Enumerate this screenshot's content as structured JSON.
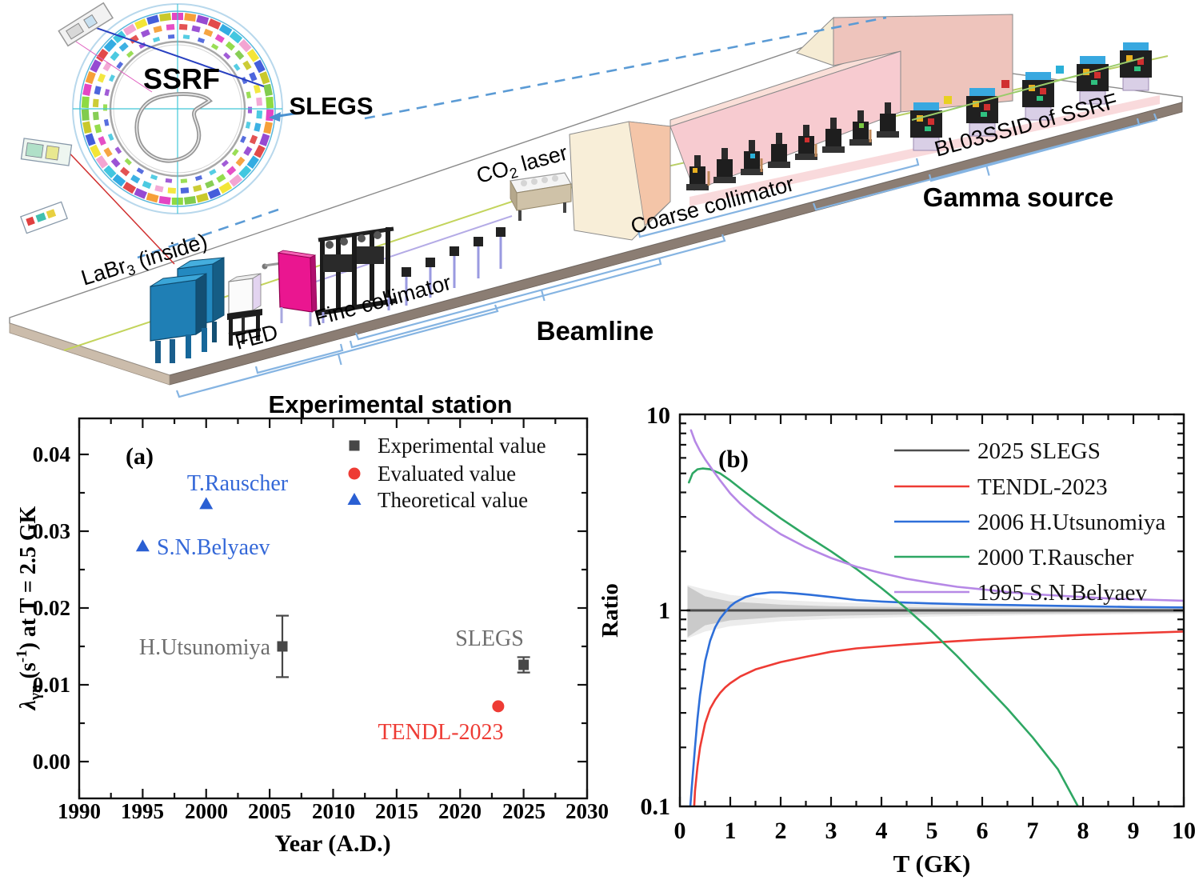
{
  "figure": {
    "facility": {
      "ring_label": "SSRF",
      "slegs_label": "SLEGS",
      "labr3": {
        "pre": "LaBr",
        "sub": "3",
        "post": " (inside)"
      },
      "fed_label": "FED",
      "fine_collimator_label": "Fine collimator",
      "experimental_station_label": "Experimental station",
      "beamline_label": "Beamline",
      "co2_laser": {
        "pre": "CO",
        "sub": "2",
        "post": " laser"
      },
      "coarse_collimator_label": "Coarse collimator",
      "gamma_source_label": "Gamma source",
      "bl03ssid_label": "BL03SSID of SSRF",
      "colors": {
        "zoom_dash_line": "#5b9bd5",
        "bracket": "#85b4e2",
        "platform_edge": "#8b7d73",
        "hutch_wall": "#f7cbd0",
        "hutch_wall_right": "#eec4bc",
        "hutch_block": "#f8eed8",
        "detector_blue": "#1f7fb5",
        "shield_magenta": "#ea1690"
      }
    }
  },
  "chart_data": [
    {
      "type": "scatter",
      "panel_label": "(a)",
      "xlabel": "Year (A.D.)",
      "ylabel_parts": {
        "l1": "λ",
        "l2": "γn",
        "l3": " (s",
        "l4": "-1",
        "l5": ") at T = 2.5 GK"
      },
      "xlim": [
        1990,
        2030
      ],
      "ylim": [
        -0.005,
        0.0445
      ],
      "xticks": [
        "1990",
        "1995",
        "2000",
        "2005",
        "2010",
        "2015",
        "2020",
        "2025",
        "2030"
      ],
      "yticks": [
        "0.00",
        "0.01",
        "0.02",
        "0.03",
        "0.04"
      ],
      "grid": false,
      "legend_position": "top-right",
      "legend": [
        {
          "label": "Experimental value",
          "marker": "square",
          "color": "#474747"
        },
        {
          "label": "Evaluated value",
          "marker": "circle",
          "color": "#ee3b34"
        },
        {
          "label": "Theoretical value",
          "marker": "triangle",
          "color": "#2a5fd3"
        }
      ],
      "points": [
        {
          "label": "S.N.Belyaev",
          "year": 1995,
          "value": 0.028,
          "marker": "triangle",
          "color": "#2a5fd3",
          "label_color": "#3468d8"
        },
        {
          "label": "T.Rauscher",
          "year": 2000,
          "value": 0.0335,
          "marker": "triangle",
          "color": "#2a5fd3",
          "label_color": "#3468d8"
        },
        {
          "label": "H.Utsunomiya",
          "year": 2006,
          "value": 0.015,
          "err_plus": 0.004,
          "err_minus": 0.004,
          "marker": "square",
          "color": "#474747",
          "label_color": "#6e6e6e"
        },
        {
          "label": "SLEGS",
          "year": 2025,
          "value": 0.0126,
          "err_plus": 0.001,
          "err_minus": 0.001,
          "marker": "square",
          "color": "#474747",
          "label_color": "#6e6e6e"
        },
        {
          "label": "TENDL-2023",
          "year": 2023,
          "value": 0.0072,
          "marker": "circle",
          "color": "#ee3b34",
          "label_color": "#ee3b34"
        }
      ]
    },
    {
      "type": "line",
      "panel_label": "(b)",
      "xlabel": "T (GK)",
      "ylabel": "Ratio",
      "xlim": [
        0,
        10
      ],
      "ylim_log": [
        0.1,
        10
      ],
      "xticks": [
        "0",
        "1",
        "2",
        "3",
        "4",
        "5",
        "6",
        "7",
        "8",
        "9",
        "10"
      ],
      "yticks": [
        "0.1",
        "1",
        "10"
      ],
      "legend_position": "top-right",
      "reference_line": 1.0,
      "series": [
        {
          "name": "2025 SLEGS",
          "color": "#4d4d4d",
          "points": [
            [
              0.15,
              1.0
            ],
            [
              10,
              1.0
            ]
          ]
        },
        {
          "name": "TENDL-2023",
          "color": "#ee3b34",
          "points": [
            [
              0.28,
              0.095
            ],
            [
              0.3,
              0.12
            ],
            [
              0.35,
              0.16
            ],
            [
              0.4,
              0.2
            ],
            [
              0.5,
              0.265
            ],
            [
              0.6,
              0.315
            ],
            [
              0.7,
              0.35
            ],
            [
              0.8,
              0.38
            ],
            [
              0.9,
              0.405
            ],
            [
              1.0,
              0.425
            ],
            [
              1.2,
              0.46
            ],
            [
              1.5,
              0.5
            ],
            [
              2.0,
              0.545
            ],
            [
              2.5,
              0.58
            ],
            [
              3.0,
              0.615
            ],
            [
              3.5,
              0.64
            ],
            [
              4.0,
              0.655
            ],
            [
              4.5,
              0.67
            ],
            [
              5.0,
              0.685
            ],
            [
              6.0,
              0.71
            ],
            [
              7.0,
              0.73
            ],
            [
              8.0,
              0.75
            ],
            [
              9.0,
              0.765
            ],
            [
              10.0,
              0.78
            ]
          ]
        },
        {
          "name": "2006 H.Utsunomiya",
          "color": "#2e6fd9",
          "points": [
            [
              0.2,
              0.095
            ],
            [
              0.25,
              0.14
            ],
            [
              0.3,
              0.2
            ],
            [
              0.35,
              0.28
            ],
            [
              0.4,
              0.37
            ],
            [
              0.5,
              0.55
            ],
            [
              0.6,
              0.7
            ],
            [
              0.7,
              0.82
            ],
            [
              0.8,
              0.91
            ],
            [
              0.9,
              0.98
            ],
            [
              1.0,
              1.05
            ],
            [
              1.1,
              1.1
            ],
            [
              1.3,
              1.17
            ],
            [
              1.5,
              1.21
            ],
            [
              1.8,
              1.235
            ],
            [
              2.0,
              1.235
            ],
            [
              2.3,
              1.22
            ],
            [
              2.6,
              1.2
            ],
            [
              3.0,
              1.17
            ],
            [
              3.5,
              1.13
            ],
            [
              4.0,
              1.11
            ],
            [
              4.5,
              1.095
            ],
            [
              5.0,
              1.085
            ],
            [
              6.0,
              1.07
            ],
            [
              7.0,
              1.06
            ],
            [
              8.0,
              1.05
            ],
            [
              9.0,
              1.04
            ],
            [
              10.0,
              1.035
            ]
          ]
        },
        {
          "name": "2000 T.Rauscher",
          "color": "#2ea763",
          "points": [
            [
              0.18,
              4.5
            ],
            [
              0.25,
              5.0
            ],
            [
              0.35,
              5.25
            ],
            [
              0.45,
              5.3
            ],
            [
              0.6,
              5.25
            ],
            [
              0.8,
              5.0
            ],
            [
              1.0,
              4.6
            ],
            [
              1.3,
              4.0
            ],
            [
              1.6,
              3.5
            ],
            [
              2.0,
              2.95
            ],
            [
              2.5,
              2.42
            ],
            [
              3.0,
              2.0
            ],
            [
              3.5,
              1.63
            ],
            [
              4.0,
              1.3
            ],
            [
              4.5,
              1.02
            ],
            [
              5.0,
              0.78
            ],
            [
              5.5,
              0.585
            ],
            [
              6.0,
              0.43
            ],
            [
              6.5,
              0.315
            ],
            [
              7.0,
              0.225
            ],
            [
              7.5,
              0.155
            ],
            [
              7.9,
              0.1
            ]
          ]
        },
        {
          "name": "1995 S.N.Belyaev",
          "color": "#b688e6",
          "points": [
            [
              0.22,
              8.3
            ],
            [
              0.3,
              7.3
            ],
            [
              0.4,
              6.5
            ],
            [
              0.5,
              5.9
            ],
            [
              0.65,
              5.2
            ],
            [
              0.8,
              4.6
            ],
            [
              1.0,
              3.95
            ],
            [
              1.2,
              3.5
            ],
            [
              1.5,
              3.0
            ],
            [
              1.8,
              2.65
            ],
            [
              2.0,
              2.45
            ],
            [
              2.5,
              2.1
            ],
            [
              3.0,
              1.85
            ],
            [
              3.5,
              1.67
            ],
            [
              4.0,
              1.55
            ],
            [
              4.5,
              1.45
            ],
            [
              5.0,
              1.38
            ],
            [
              5.5,
              1.32
            ],
            [
              6.0,
              1.28
            ],
            [
              6.5,
              1.24
            ],
            [
              7.0,
              1.21
            ],
            [
              7.5,
              1.19
            ],
            [
              8.0,
              1.17
            ],
            [
              8.5,
              1.15
            ],
            [
              9.0,
              1.14
            ],
            [
              9.5,
              1.13
            ],
            [
              10.0,
              1.12
            ]
          ]
        }
      ],
      "uncertainty_band": {
        "color_outer": "#e2e2e2",
        "color_inner": "#bfbfbf",
        "outer_upper": [
          [
            0.15,
            1.35
          ],
          [
            0.5,
            1.28
          ],
          [
            1,
            1.2
          ],
          [
            2,
            1.13
          ],
          [
            3,
            1.1
          ],
          [
            5,
            1.07
          ],
          [
            7,
            1.05
          ],
          [
            10,
            1.04
          ]
        ],
        "outer_lower": [
          [
            0.15,
            0.72
          ],
          [
            0.5,
            0.78
          ],
          [
            1,
            0.83
          ],
          [
            2,
            0.88
          ],
          [
            3,
            0.905
          ],
          [
            5,
            0.93
          ],
          [
            7,
            0.945
          ],
          [
            10,
            0.96
          ]
        ],
        "inner_upper": [
          [
            0.15,
            1.33
          ],
          [
            0.5,
            1.18
          ],
          [
            1,
            1.11
          ],
          [
            2,
            1.07
          ],
          [
            3,
            1.05
          ],
          [
            5,
            1.035
          ],
          [
            10,
            1.02
          ]
        ],
        "inner_lower": [
          [
            0.15,
            0.73
          ],
          [
            0.5,
            0.84
          ],
          [
            1,
            0.89
          ],
          [
            2,
            0.925
          ],
          [
            3,
            0.94
          ],
          [
            5,
            0.955
          ],
          [
            10,
            0.975
          ]
        ]
      }
    }
  ]
}
